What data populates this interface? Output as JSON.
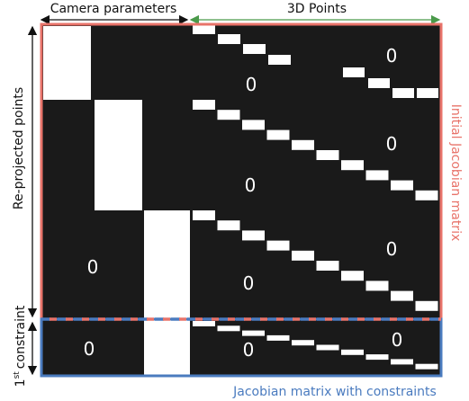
{
  "header": {
    "camera_parameters": "Camera parameters",
    "points_3d": "3D Points"
  },
  "side": {
    "reprojected_points": "Re-projected points",
    "constraint_sup": "st",
    "constraint_num": "1",
    "constraint_word": "constraint"
  },
  "right": {
    "initial_jacobian": "Initial Jacobian matrix"
  },
  "bottom": {
    "jacobian_constraints": "Jacobian matrix with constraints"
  },
  "zero_label": "0",
  "colors": {
    "matrix_bg": "#1a1a1a",
    "block": "#ffffff",
    "initial_border": "#e8736a",
    "constraint_border": "#4a7bbf",
    "arrow_header_left": "#111111",
    "arrow_header_right": "#4a9a4a"
  }
}
